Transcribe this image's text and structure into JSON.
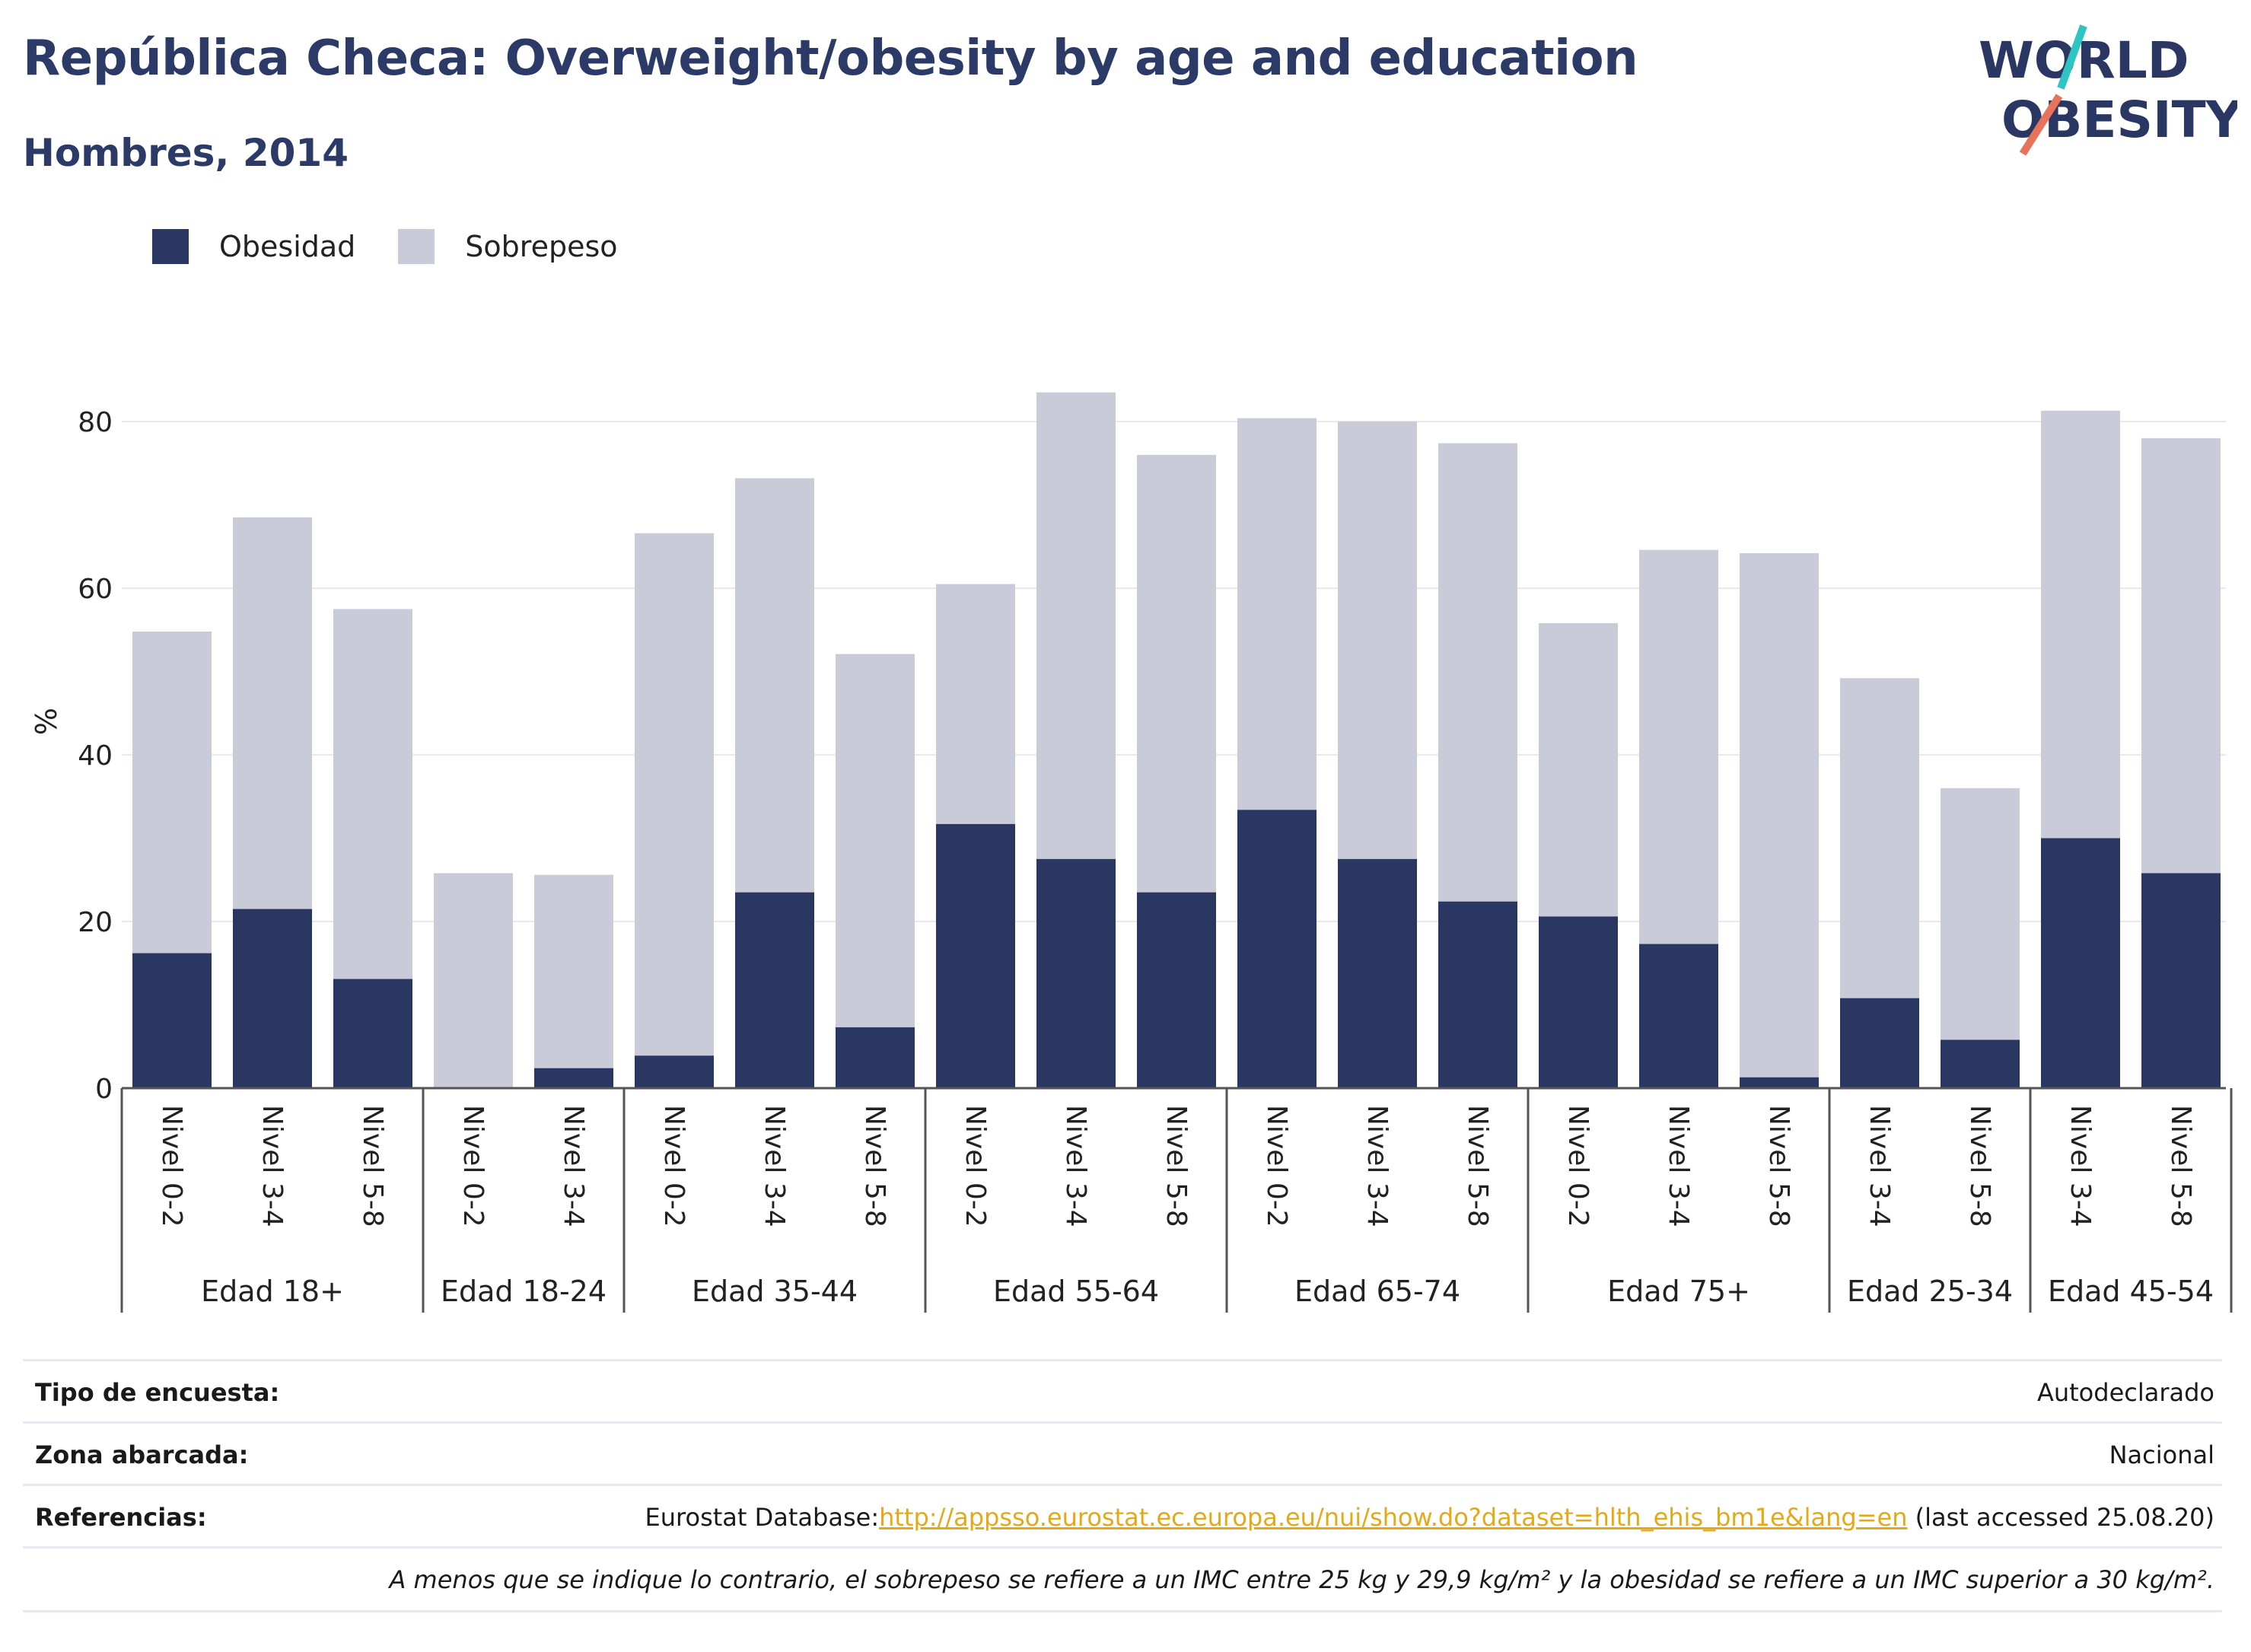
{
  "header": {
    "title": "República Checa: Overweight/obesity by age and education",
    "subtitle": "Hombres, 2014"
  },
  "logo": {
    "line1": "WORLD",
    "line2": "OBESITY",
    "accent_colors": [
      "#2ec4c4",
      "#e8735a"
    ]
  },
  "legend": {
    "items": [
      {
        "label": "Obesidad",
        "color": "#2b3763"
      },
      {
        "label": "Sobrepeso",
        "color": "#cacbd8"
      }
    ]
  },
  "chart_data": {
    "type": "bar",
    "stacked": true,
    "ylabel": "%",
    "ylim": [
      0,
      85
    ],
    "yticks": [
      0,
      20,
      40,
      60,
      80
    ],
    "grid": true,
    "legend_position": "top-left",
    "groups": [
      {
        "label": "Edad 18+",
        "bars": [
          {
            "label": "Nivel 0-2",
            "obesidad": 16.2,
            "total": 54.8
          },
          {
            "label": "Nivel 3-4",
            "obesidad": 21.5,
            "total": 68.5
          },
          {
            "label": "Nivel 5-8",
            "obesidad": 13.1,
            "total": 57.5
          }
        ]
      },
      {
        "label": "Edad 18-24",
        "bars": [
          {
            "label": "Nivel 0-2",
            "obesidad": 0.0,
            "total": 25.8
          },
          {
            "label": "Nivel 3-4",
            "obesidad": 2.4,
            "total": 25.6
          }
        ]
      },
      {
        "label": "Edad 35-44",
        "bars": [
          {
            "label": "Nivel 0-2",
            "obesidad": 3.9,
            "total": 66.6
          },
          {
            "label": "Nivel 3-4",
            "obesidad": 23.5,
            "total": 73.2
          },
          {
            "label": "Nivel 5-8",
            "obesidad": 7.3,
            "total": 52.1
          }
        ]
      },
      {
        "label": "Edad 55-64",
        "bars": [
          {
            "label": "Nivel 0-2",
            "obesidad": 31.7,
            "total": 60.5
          },
          {
            "label": "Nivel 3-4",
            "obesidad": 27.5,
            "total": 83.5
          },
          {
            "label": "Nivel 5-8",
            "obesidad": 23.5,
            "total": 76.0
          }
        ]
      },
      {
        "label": "Edad 65-74",
        "bars": [
          {
            "label": "Nivel 0-2",
            "obesidad": 33.4,
            "total": 80.4
          },
          {
            "label": "Nivel 3-4",
            "obesidad": 27.5,
            "total": 80.0
          },
          {
            "label": "Nivel 5-8",
            "obesidad": 22.4,
            "total": 77.4
          }
        ]
      },
      {
        "label": "Edad 75+",
        "bars": [
          {
            "label": "Nivel 0-2",
            "obesidad": 20.6,
            "total": 55.8
          },
          {
            "label": "Nivel 3-4",
            "obesidad": 17.3,
            "total": 64.6
          },
          {
            "label": "Nivel 5-8",
            "obesidad": 1.3,
            "total": 64.2
          }
        ]
      },
      {
        "label": "Edad 25-34",
        "bars": [
          {
            "label": "Nivel 3-4",
            "obesidad": 10.8,
            "total": 49.2
          },
          {
            "label": "Nivel 5-8",
            "obesidad": 5.8,
            "total": 36.0
          }
        ]
      },
      {
        "label": "Edad 45-54",
        "bars": [
          {
            "label": "Nivel 3-4",
            "obesidad": 30.0,
            "total": 81.3
          },
          {
            "label": "Nivel 5-8",
            "obesidad": 25.8,
            "total": 78.0
          }
        ]
      }
    ]
  },
  "info": {
    "survey_type_label": "Tipo de encuesta:",
    "survey_type_value": "Autodeclarado",
    "area_label": "Zona abarcada:",
    "area_value": "Nacional",
    "references_label": "Referencias:",
    "references_prefix": "Eurostat Database:",
    "references_link": "http://appsso.eurostat.ec.europa.eu/nui/show.do?dataset=hlth_ehis_bm1e&lang=en",
    "references_suffix": " (last accessed 25.08.20)",
    "note": "A menos que se indique lo contrario, el sobrepeso se refiere a un IMC entre 25 kg y 29,9 kg/m² y la obesidad se refiere a un IMC superior a 30 kg/m²."
  }
}
